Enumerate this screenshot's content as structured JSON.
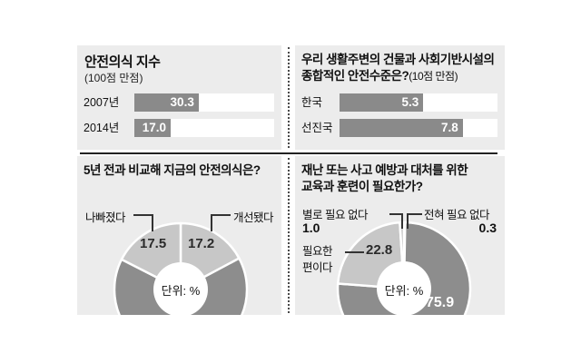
{
  "colors": {
    "panel_bg": "#ececec",
    "bar_fill": "#8a8a8a",
    "donut_dark": "#8d8d8d",
    "donut_light": "#c7c7c7",
    "donut_sliver": "#9a9a9a",
    "separator": "#222222"
  },
  "panels": {
    "safety_index": {
      "title": "안전의식 지수",
      "subtitle": "(100점 만점)",
      "rows": [
        {
          "label": "2007년",
          "value": "30.3",
          "bar_pct": 46
        },
        {
          "label": "2014년",
          "value": "17.0",
          "bar_pct": 26
        }
      ]
    },
    "infra_level": {
      "title_line1": "우리 생활주변의 건물과 사회기반시설의",
      "title_line2": "종합적인 안전수준은?",
      "title_note": "(10점 만점)",
      "rows": [
        {
          "label": "한국",
          "value": "5.3",
          "bar_pct": 53
        },
        {
          "label": "선진국",
          "value": "7.8",
          "bar_pct": 78
        }
      ]
    },
    "donut_left": {
      "title": "5년 전과 비교해 지금의 안전의식은?",
      "callout_left": "나빠졌다",
      "value_left": "17.5",
      "callout_right": "개선됐다",
      "value_right": "17.2",
      "center_label": "단위: %",
      "segments": [
        {
          "label": "개선됐다",
          "value": 17.2,
          "color": "#c7c7c7"
        },
        {
          "label": "",
          "value": 65.3,
          "color": "#8d8d8d"
        },
        {
          "label": "나빠졌다",
          "value": 17.5,
          "color": "#c7c7c7"
        }
      ]
    },
    "donut_right": {
      "title_line1": "재난 또는 사고 예방과 대처를 위한",
      "title_line2": "교육과 훈련이 필요한가?",
      "callout_tl": "별로 필요 없다",
      "callout_tl_value": "1.0",
      "callout_tr": "전혀 필요 없다",
      "callout_tr_value": "0.3",
      "callout_mid_line1": "필요한",
      "callout_mid_line2": "편이다",
      "callout_mid_value": "22.8",
      "big_value": "75.9",
      "center_label": "단위: %",
      "segments": [
        {
          "label": "전혀 필요 없다",
          "value": 0.3,
          "color": "#9a9a9a"
        },
        {
          "label": "",
          "value": 75.9,
          "color": "#8d8d8d"
        },
        {
          "label": "필요한 편이다",
          "value": 22.8,
          "color": "#c7c7c7"
        },
        {
          "label": "별로 필요 없다",
          "value": 1.0,
          "color": "#c7c7c7"
        }
      ]
    }
  },
  "chart_data": [
    {
      "type": "bar",
      "title": "안전의식 지수",
      "subtitle": "(100점 만점)",
      "categories": [
        "2007년",
        "2014년"
      ],
      "values": [
        30.3,
        17.0
      ],
      "xlim": [
        0,
        100
      ],
      "orientation": "horizontal",
      "value_labels": "inside-bar-right"
    },
    {
      "type": "bar",
      "title": "우리 생활주변의 건물과 사회기반시설의 종합적인 안전수준은?",
      "subtitle": "(10점 만점)",
      "categories": [
        "한국",
        "선진국"
      ],
      "values": [
        5.3,
        7.8
      ],
      "xlim": [
        0,
        10
      ],
      "orientation": "horizontal",
      "value_labels": "inside-bar-right"
    },
    {
      "type": "pie",
      "subtype": "donut",
      "title": "5년 전과 비교해 지금의 안전의식은?",
      "unit": "단위: %",
      "start_angle": "12-oclock-clockwise",
      "slices": [
        {
          "label": "개선됐다",
          "value": 17.2
        },
        {
          "label": "",
          "value": 65.3
        },
        {
          "label": "나빠졌다",
          "value": 17.5
        }
      ]
    },
    {
      "type": "pie",
      "subtype": "donut",
      "title": "재난 또는 사고 예방과 대처를 위한 교육과 훈련이 필요한가?",
      "unit": "단위: %",
      "start_angle": "12-oclock-clockwise",
      "slices": [
        {
          "label": "전혀 필요 없다",
          "value": 0.3
        },
        {
          "label": "",
          "value": 75.9
        },
        {
          "label": "필요한 편이다",
          "value": 22.8
        },
        {
          "label": "별로 필요 없다",
          "value": 1.0
        }
      ]
    }
  ]
}
